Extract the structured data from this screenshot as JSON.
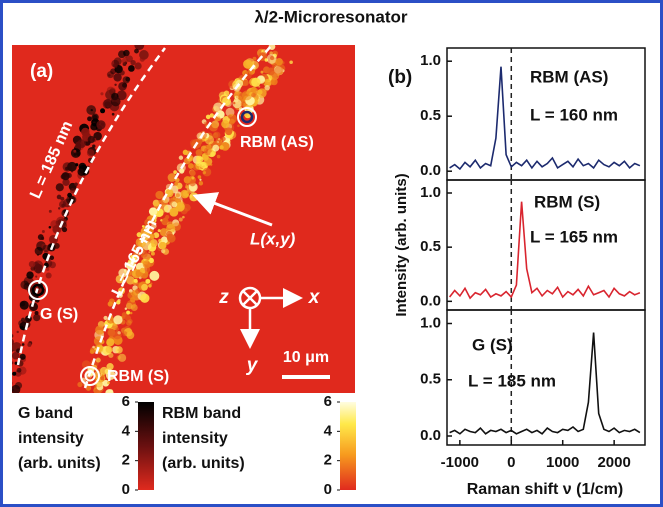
{
  "title": "λ/2-Microresonator",
  "panel_a": {
    "label": "(a)",
    "line_labels": [
      "L = 185 nm",
      "L = 165 nm"
    ],
    "spots": [
      "RBM (AS)",
      "G (S)",
      "RBM (S)"
    ],
    "arrow_label": "L(x,y)",
    "axes": [
      "z",
      "x",
      "y"
    ],
    "scale_bar": "10 μm",
    "colorbars": [
      {
        "label": [
          "G band",
          "intensity",
          "(arb. units)"
        ],
        "lim": [
          0,
          6
        ],
        "ticks": [
          0,
          2,
          4,
          6
        ]
      },
      {
        "label": [
          "RBM band",
          "intensity",
          "(arb. units)"
        ],
        "lim": [
          0,
          6
        ],
        "ticks": [
          0,
          2,
          4,
          6
        ]
      }
    ]
  },
  "panel_b_label": "(b)",
  "y_label": "Intensity (arb. units)",
  "x_label": "Raman shift ν (1/cm)",
  "chart_data": [
    {
      "type": "line",
      "annotation": "L = 160 nm",
      "dashed_line_x": 0,
      "x": [
        -1200,
        -1100,
        -1000,
        -900,
        -800,
        -700,
        -600,
        -500,
        -400,
        -300,
        -200,
        -100,
        0,
        100,
        200,
        300,
        400,
        500,
        600,
        700,
        800,
        900,
        1000,
        1100,
        1200,
        1300,
        1400,
        1500,
        1600,
        1700,
        1800,
        1900,
        2000,
        2100,
        2200,
        2300,
        2400,
        2500
      ],
      "series": [
        {
          "name": "RBM (AS)",
          "color": "#1c2a6e",
          "values": [
            0.03,
            0.06,
            0.02,
            0.08,
            0.04,
            0.1,
            0.03,
            0.07,
            0.05,
            0.3,
            0.95,
            0.15,
            0.04,
            0.08,
            0.05,
            0.1,
            0.03,
            0.09,
            0.04,
            0.07,
            0.12,
            0.03,
            0.06,
            0.09,
            0.04,
            0.11,
            0.05,
            0.07,
            0.03,
            0.1,
            0.06,
            0.04,
            0.08,
            0.05,
            0.09,
            0.03,
            0.07,
            0.05
          ]
        }
      ],
      "xlim": [
        -1250,
        2600
      ],
      "ylim": [
        -0.08,
        1.12
      ],
      "yticks": [
        {
          "value": 0,
          "label": "0.0"
        },
        0.5,
        {
          "value": 1,
          "label": "1.0"
        }
      ]
    },
    {
      "type": "line",
      "annotation": "L = 165 nm",
      "dashed_line_x": 0,
      "x": [
        -1200,
        -1100,
        -1000,
        -900,
        -800,
        -700,
        -600,
        -500,
        -400,
        -300,
        -200,
        -100,
        0,
        100,
        200,
        300,
        400,
        500,
        600,
        700,
        800,
        900,
        1000,
        1100,
        1200,
        1300,
        1400,
        1500,
        1600,
        1700,
        1800,
        1900,
        2000,
        2100,
        2200,
        2300,
        2400,
        2500
      ],
      "series": [
        {
          "name": "RBM (S)",
          "color": "#d9252f",
          "values": [
            0.04,
            0.1,
            0.05,
            0.12,
            0.03,
            0.08,
            0.06,
            0.11,
            0.04,
            0.07,
            0.05,
            0.09,
            0.04,
            0.15,
            0.92,
            0.3,
            0.08,
            0.12,
            0.05,
            0.1,
            0.07,
            0.13,
            0.04,
            0.09,
            0.06,
            0.11,
            0.05,
            0.14,
            0.06,
            0.08,
            0.1,
            0.04,
            0.12,
            0.07,
            0.05,
            0.09,
            0.06,
            0.08
          ]
        }
      ],
      "xlim": [
        -1250,
        2600
      ],
      "ylim": [
        -0.08,
        1.12
      ],
      "yticks": [
        {
          "value": 0,
          "label": "0.0"
        },
        0.5,
        {
          "value": 1,
          "label": "1.0"
        }
      ]
    },
    {
      "type": "line",
      "annotation": "L = 185 nm",
      "dashed_line_x": 0,
      "x": [
        -1200,
        -1100,
        -1000,
        -900,
        -800,
        -700,
        -600,
        -500,
        -400,
        -300,
        -200,
        -100,
        0,
        100,
        200,
        300,
        400,
        500,
        600,
        700,
        800,
        900,
        1000,
        1100,
        1200,
        1300,
        1400,
        1500,
        1600,
        1700,
        1800,
        1900,
        2000,
        2100,
        2200,
        2300,
        2400,
        2500
      ],
      "series": [
        {
          "name": "G (S)",
          "color": "#111111",
          "values": [
            0.03,
            0.05,
            0.02,
            0.06,
            0.04,
            0.03,
            0.07,
            0.02,
            0.05,
            0.04,
            0.06,
            0.03,
            0.05,
            0.02,
            0.04,
            0.06,
            0.03,
            0.05,
            0.02,
            0.07,
            0.04,
            0.03,
            0.06,
            0.05,
            0.08,
            0.04,
            0.06,
            0.3,
            0.92,
            0.2,
            0.06,
            0.04,
            0.07,
            0.03,
            0.05,
            0.04,
            0.06,
            0.03
          ]
        }
      ],
      "xlim": [
        -1250,
        2600
      ],
      "ylim": [
        -0.08,
        1.12
      ],
      "yticks": [
        {
          "value": 0,
          "label": "0.0"
        },
        0.5,
        {
          "value": 1,
          "label": "1.0"
        }
      ],
      "xticks": [
        {
          "value": -1000,
          "label": "-1000"
        },
        0,
        1000,
        2000
      ]
    }
  ]
}
